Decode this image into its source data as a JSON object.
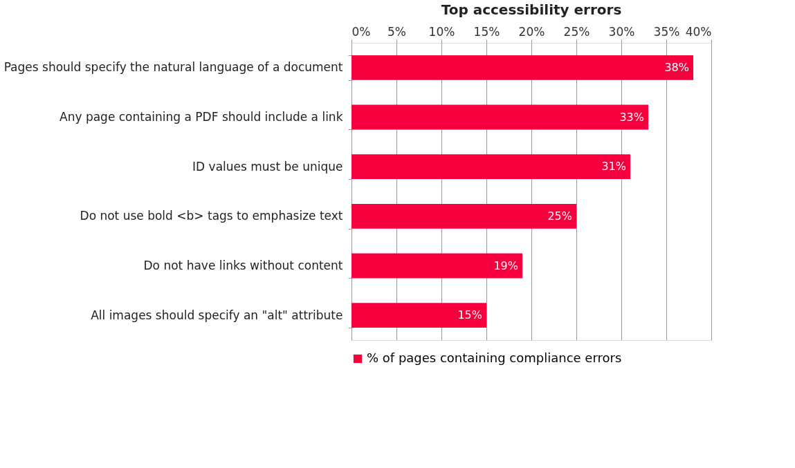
{
  "chart_data": {
    "type": "bar",
    "orientation": "horizontal",
    "title": "Top accessibility errors",
    "categories": [
      "Pages should specify the natural language of a document",
      "Any page containing a PDF should include a link",
      "ID values must be unique",
      "Do not use bold <b> tags to emphasize text",
      "Do not have links without content",
      "All images should specify an \"alt\" attribute"
    ],
    "series": [
      {
        "name": "% of pages containing compliance errors",
        "color": "#f5003d",
        "values": [
          38,
          33,
          31,
          25,
          19,
          15
        ],
        "value_labels": [
          "38%",
          "33%",
          "31%",
          "25%",
          "19%",
          "15%"
        ]
      }
    ],
    "xlim": [
      0,
      40
    ],
    "xticks": [
      {
        "value": 0,
        "label": "0%"
      },
      {
        "value": 5,
        "label": "5%"
      },
      {
        "value": 10,
        "label": "10%"
      },
      {
        "value": 15,
        "label": "15%"
      },
      {
        "value": 20,
        "label": "20%"
      },
      {
        "value": 25,
        "label": "25%"
      },
      {
        "value": 30,
        "label": "30%"
      },
      {
        "value": 35,
        "label": "35%"
      },
      {
        "value": 40,
        "label": "40%"
      }
    ],
    "grid": "x",
    "legend": "bottom"
  }
}
